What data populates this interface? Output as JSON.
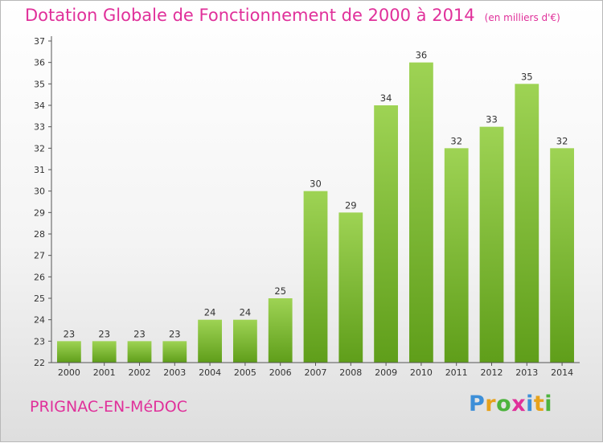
{
  "title": "Dotation Globale de Fonctionnement de 2000 à 2014",
  "subtitle": "(en milliers d'€)",
  "commune": "PRIGNAC-EN-MéDOC",
  "logo": [
    "P",
    "r",
    "o",
    "x",
    "i",
    "t",
    "i"
  ],
  "colors": {
    "title": "#e0309a",
    "bar_top": "#9ed354",
    "bar_bottom": "#5f9e1a",
    "logo": [
      "#3d8fd8",
      "#e7a21c",
      "#4db33d",
      "#e0309a",
      "#3d8fd8",
      "#e7a21c",
      "#4db33d"
    ]
  },
  "chart_data": {
    "type": "bar",
    "title": "Dotation Globale de Fonctionnement de 2000 à 2014",
    "subtitle": "(en milliers d'€)",
    "xlabel": "",
    "ylabel": "",
    "categories": [
      "2000",
      "2001",
      "2002",
      "2003",
      "2004",
      "2005",
      "2006",
      "2007",
      "2008",
      "2009",
      "2010",
      "2011",
      "2012",
      "2013",
      "2014"
    ],
    "values": [
      23,
      23,
      23,
      23,
      24,
      24,
      25,
      30,
      29,
      34,
      36,
      32,
      33,
      35,
      32
    ],
    "ylim": [
      22,
      37
    ],
    "yticks": [
      22,
      23,
      24,
      25,
      26,
      27,
      28,
      29,
      30,
      31,
      32,
      33,
      34,
      35,
      36,
      37
    ],
    "grid": false,
    "legend": "none"
  }
}
